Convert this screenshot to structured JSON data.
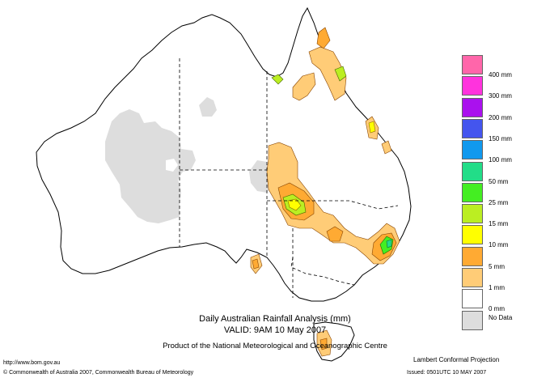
{
  "titles": {
    "line1": "Daily Australian Rainfall Analysis (mm)",
    "line2": "VALID: 9AM 10 May 2007",
    "line3": "Product of the National Meteorological and Oceanographic Centre"
  },
  "footer": {
    "url": "http://www.bom.gov.au",
    "copyright": "© Commonwealth of Australia 2007, Commonwealth Bureau of Meteorology",
    "projection": "Lambert Conformal Projection",
    "issued": "Issued: 0501UTC 10 MAY 2007"
  },
  "legend": [
    {
      "label": "400 mm",
      "color": "#ff66aa"
    },
    {
      "label": "300 mm",
      "color": "#ff33dd"
    },
    {
      "label": "200 mm",
      "color": "#aa11ee"
    },
    {
      "label": "150 mm",
      "color": "#4455ee"
    },
    {
      "label": "100 mm",
      "color": "#1199ee"
    },
    {
      "label": "50 mm",
      "color": "#22dd88"
    },
    {
      "label": "25 mm",
      "color": "#44ee22"
    },
    {
      "label": "15 mm",
      "color": "#bbee22"
    },
    {
      "label": "10 mm",
      "color": "#ffff00"
    },
    {
      "label": "5 mm",
      "color": "#ffaa33"
    },
    {
      "label": "1 mm",
      "color": "#ffcc77"
    },
    {
      "label": "0 mm",
      "color": "#ffffff"
    },
    {
      "label": "No Data",
      "color": "#dddddd"
    }
  ],
  "colors": {
    "coast": "#000000",
    "borders": "#000000",
    "no_data": "#dddddd"
  }
}
